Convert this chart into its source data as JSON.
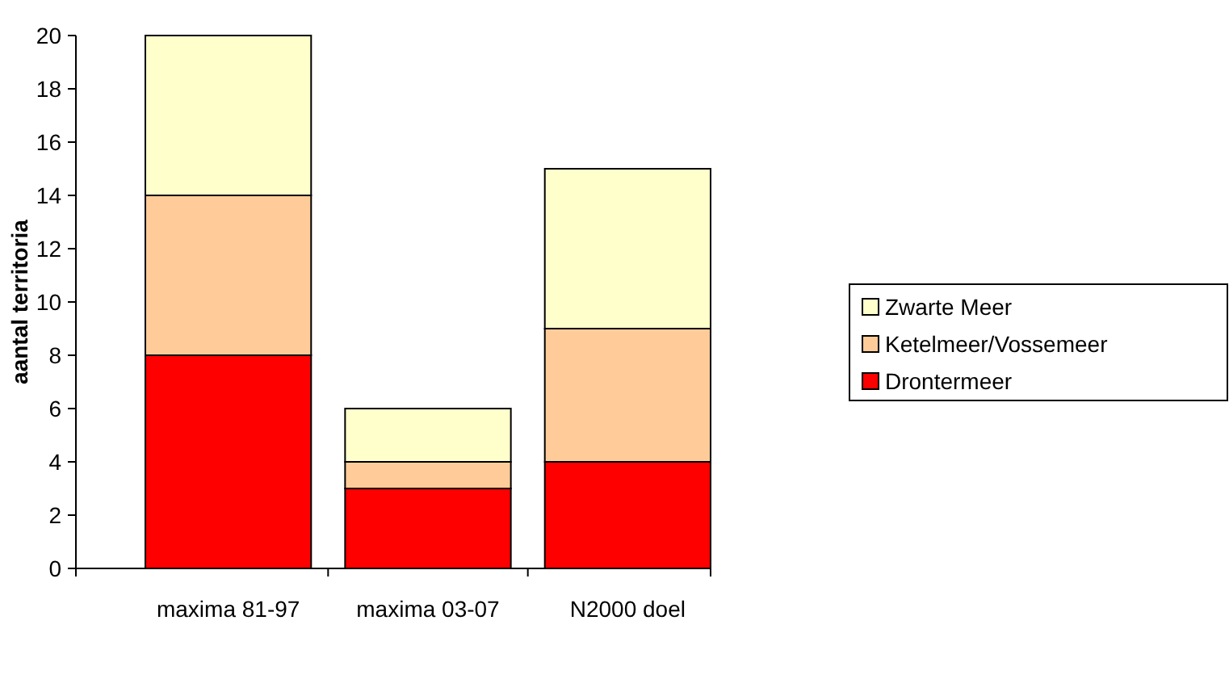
{
  "chart_data": {
    "type": "bar",
    "stacked": true,
    "ylabel": "aantal territoria",
    "categories": [
      "maxima 81-97",
      "maxima 03-07",
      "N2000 doel"
    ],
    "series": [
      {
        "name": "Drontermeer",
        "color": "#ff0000",
        "values": [
          8,
          3,
          4
        ]
      },
      {
        "name": "Ketelmeer/Vossemeer",
        "color": "#ffcc99",
        "values": [
          6,
          1,
          5
        ]
      },
      {
        "name": "Zwarte Meer",
        "color": "#ffffcc",
        "values": [
          6,
          2,
          6
        ]
      }
    ],
    "ylim": [
      0,
      20
    ],
    "yticks": [
      0,
      2,
      4,
      6,
      8,
      10,
      12,
      14,
      16,
      18,
      20
    ],
    "legend": "right"
  }
}
